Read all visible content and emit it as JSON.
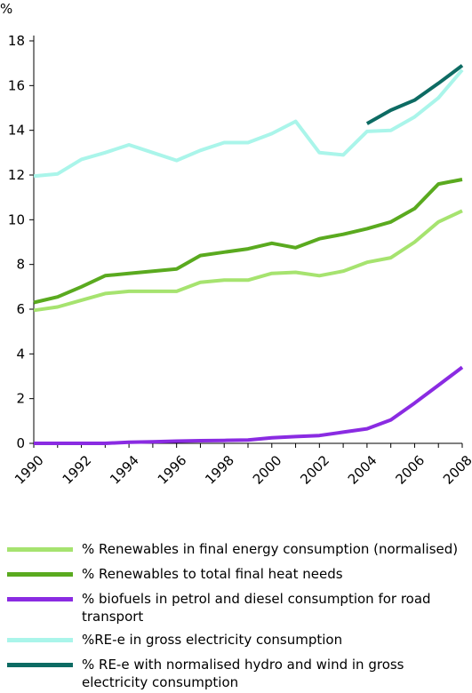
{
  "chart_data": {
    "type": "line",
    "unit": "%",
    "x": [
      1990,
      1991,
      1992,
      1993,
      1994,
      1995,
      1996,
      1997,
      1998,
      1999,
      2000,
      2001,
      2002,
      2003,
      2004,
      2005,
      2006,
      2007,
      2008
    ],
    "x_tick_labels": [
      "1990",
      "1992",
      "1994",
      "1996",
      "1998",
      "2000",
      "2002",
      "2004",
      "2006",
      "2008"
    ],
    "y_tick_labels": [
      "0",
      "2",
      "4",
      "6",
      "8",
      "10",
      "12",
      "14",
      "16",
      "18"
    ],
    "ylim": [
      0,
      18
    ],
    "xlim": [
      1990,
      2008
    ],
    "grid": false,
    "legend_position": "bottom",
    "series": [
      {
        "name": "% Renewables in final energy consumption (normalised)",
        "color": "#a6e36f",
        "values": [
          5.95,
          6.1,
          6.4,
          6.7,
          6.8,
          6.8,
          6.8,
          7.2,
          7.3,
          7.3,
          7.6,
          7.65,
          7.5,
          7.7,
          8.1,
          8.3,
          9.0,
          9.9,
          10.4
        ]
      },
      {
        "name": "% Renewables to total final heat needs",
        "color": "#5aaa1f",
        "values": [
          6.3,
          6.55,
          7.0,
          7.5,
          7.6,
          7.7,
          7.8,
          8.4,
          8.55,
          8.7,
          8.95,
          8.75,
          9.15,
          9.35,
          9.6,
          9.9,
          10.5,
          11.6,
          11.8
        ]
      },
      {
        "name": "% biofuels in petrol and diesel consumption for road transport",
        "color": "#8a2be2",
        "values": [
          0.0,
          0.0,
          0.0,
          0.0,
          0.05,
          0.07,
          0.1,
          0.12,
          0.13,
          0.15,
          0.25,
          0.3,
          0.35,
          0.5,
          0.65,
          1.05,
          1.8,
          2.6,
          3.4
        ]
      },
      {
        "name": "%RE-e in gross electricity consumption",
        "color": "#aaf5ea",
        "values": [
          11.95,
          12.05,
          12.7,
          13.0,
          13.35,
          13.0,
          12.65,
          13.1,
          13.45,
          13.45,
          13.85,
          14.4,
          13.0,
          12.9,
          13.95,
          14.0,
          14.6,
          15.45,
          16.7
        ]
      },
      {
        "name": "% RE-e with normalised hydro and wind in gross electricity consumption",
        "color": "#0d6b63",
        "values": [
          null,
          null,
          null,
          null,
          null,
          null,
          null,
          null,
          null,
          null,
          null,
          null,
          null,
          null,
          14.3,
          14.9,
          15.35,
          16.1,
          16.9
        ]
      }
    ]
  }
}
